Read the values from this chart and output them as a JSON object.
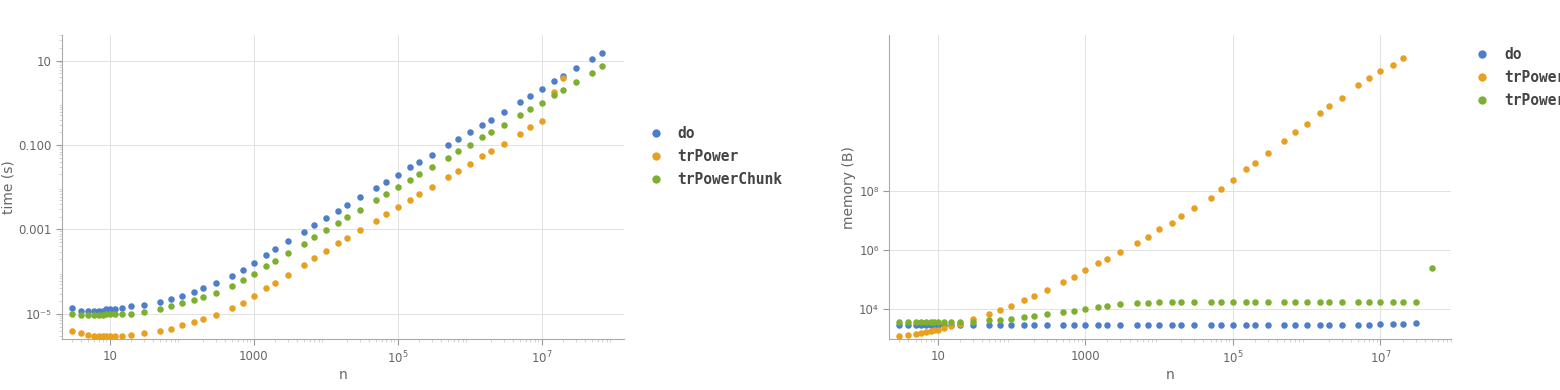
{
  "time_ylabel": "time (s)",
  "mem_ylabel": "memory (B)",
  "xlabel": "n",
  "colors": {
    "do": "#4f7ec9",
    "trPower": "#e8a020",
    "trPowerChunk": "#7db030"
  },
  "legend_labels": [
    "do",
    "trPower",
    "trPowerChunk"
  ],
  "dot_size": 22,
  "time": {
    "do_x": [
      3,
      4,
      5,
      6,
      7,
      8,
      9,
      10,
      12,
      15,
      20,
      30,
      50,
      70,
      100,
      150,
      200,
      300,
      500,
      700,
      1000,
      1500,
      2000,
      3000,
      5000,
      7000,
      10000,
      15000,
      20000,
      30000,
      50000,
      70000,
      100000,
      150000,
      200000,
      300000,
      500000,
      700000,
      1000000,
      1500000,
      2000000,
      3000000,
      5000000,
      7000000,
      10000000,
      15000000,
      20000000,
      30000000,
      50000000,
      70000000
    ],
    "do_y": [
      1.4e-05,
      1.2e-05,
      1.2e-05,
      1.2e-05,
      1.2e-05,
      1.2e-05,
      1.3e-05,
      1.3e-05,
      1.3e-05,
      1.4e-05,
      1.5e-05,
      1.6e-05,
      1.9e-05,
      2.2e-05,
      2.7e-05,
      3.3e-05,
      4e-05,
      5.5e-05,
      8e-05,
      0.00011,
      0.00016,
      0.00025,
      0.00034,
      0.00052,
      0.00087,
      0.00125,
      0.00185,
      0.0028,
      0.0038,
      0.0058,
      0.0095,
      0.0135,
      0.0195,
      0.0295,
      0.0395,
      0.059,
      0.098,
      0.14,
      0.2,
      0.3,
      0.4,
      0.61,
      1.02,
      1.45,
      2.1,
      3.2,
      4.3,
      6.5,
      10.7,
      15
    ],
    "trPower_x": [
      3,
      4,
      5,
      6,
      7,
      8,
      9,
      10,
      12,
      15,
      20,
      30,
      50,
      70,
      100,
      150,
      200,
      300,
      500,
      700,
      1000,
      1500,
      2000,
      3000,
      5000,
      7000,
      10000,
      15000,
      20000,
      30000,
      50000,
      70000,
      100000,
      150000,
      200000,
      300000,
      500000,
      700000,
      1000000,
      1500000,
      2000000,
      3000000,
      5000000,
      7000000,
      10000000,
      15000000,
      20000000
    ],
    "trPower_y": [
      4e-06,
      3.5e-06,
      3.2e-06,
      3e-06,
      3e-06,
      3e-06,
      3e-06,
      3e-06,
      3e-06,
      3e-06,
      3.2e-06,
      3.5e-06,
      4e-06,
      4.5e-06,
      5.5e-06,
      6.5e-06,
      7.5e-06,
      9.5e-06,
      1.35e-05,
      1.8e-05,
      2.7e-05,
      4e-05,
      5.5e-05,
      8.5e-05,
      0.00014,
      0.00021,
      0.00031,
      0.00047,
      0.00064,
      0.00097,
      0.00162,
      0.0023,
      0.00335,
      0.0051,
      0.0068,
      0.0102,
      0.017,
      0.0245,
      0.036,
      0.054,
      0.072,
      0.108,
      0.18,
      0.26,
      0.37,
      1.8,
      3.8
    ],
    "trPowerChunk_x": [
      3,
      4,
      5,
      6,
      7,
      8,
      9,
      10,
      12,
      15,
      20,
      30,
      50,
      70,
      100,
      150,
      200,
      300,
      500,
      700,
      1000,
      1500,
      2000,
      3000,
      5000,
      7000,
      10000,
      15000,
      20000,
      30000,
      50000,
      70000,
      100000,
      150000,
      200000,
      300000,
      500000,
      700000,
      1000000,
      1500000,
      2000000,
      3000000,
      5000000,
      7000000,
      10000000,
      15000000,
      20000000,
      30000000,
      50000000,
      70000000
    ],
    "trPowerChunk_y": [
      1e-05,
      9.5e-06,
      9.5e-06,
      9.5e-06,
      9.5e-06,
      9.5e-06,
      9.8e-06,
      9.8e-06,
      9.8e-06,
      9.8e-06,
      1e-05,
      1.1e-05,
      1.3e-05,
      1.5e-05,
      1.8e-05,
      2.1e-05,
      2.5e-05,
      3.2e-05,
      4.6e-05,
      6.2e-05,
      9e-05,
      0.000135,
      0.000182,
      0.000275,
      0.000455,
      0.000655,
      0.000955,
      0.00144,
      0.00194,
      0.00294,
      0.00488,
      0.0069,
      0.00995,
      0.015,
      0.0201,
      0.0302,
      0.0502,
      0.0705,
      0.101,
      0.152,
      0.202,
      0.303,
      0.503,
      0.706,
      1.01,
      1.52,
      2.02,
      3.03,
      5.05,
      7.6
    ]
  },
  "memory": {
    "do_x": [
      3,
      4,
      5,
      6,
      7,
      8,
      9,
      10,
      12,
      15,
      20,
      30,
      50,
      70,
      100,
      150,
      200,
      300,
      500,
      700,
      1000,
      1500,
      2000,
      3000,
      5000,
      7000,
      10000,
      15000,
      20000,
      30000,
      50000,
      70000,
      100000,
      150000,
      200000,
      300000,
      500000,
      700000,
      1000000,
      1500000,
      2000000,
      3000000,
      5000000,
      7000000,
      10000000,
      15000000,
      20000000,
      30000000
    ],
    "do_y": [
      2800,
      2800,
      2800,
      2800,
      2800,
      2800,
      2800,
      2800,
      2800,
      2800,
      2800,
      2800,
      2800,
      2800,
      2800,
      2800,
      2800,
      2800,
      2800,
      2800,
      2800,
      2800,
      2800,
      2800,
      2800,
      2800,
      2800,
      2800,
      2800,
      2800,
      2800,
      2800,
      2800,
      2800,
      2800,
      2800,
      2800,
      2800,
      2800,
      2800,
      2800,
      2800,
      2800,
      2800,
      2900,
      2900,
      2900,
      3200
    ],
    "trPower_x": [
      3,
      4,
      5,
      6,
      7,
      8,
      9,
      10,
      12,
      15,
      20,
      30,
      50,
      70,
      100,
      150,
      200,
      300,
      500,
      700,
      1000,
      1500,
      2000,
      3000,
      5000,
      7000,
      10000,
      15000,
      20000,
      30000,
      50000,
      70000,
      100000,
      150000,
      200000,
      300000,
      500000,
      700000,
      1000000,
      1500000,
      2000000,
      3000000,
      5000000,
      7000000,
      10000000,
      15000000,
      20000000
    ],
    "trPower_y": [
      1200,
      1300,
      1400,
      1500,
      1600,
      1700,
      1800,
      1900,
      2100,
      2500,
      3100,
      4400,
      6400,
      8800,
      12500.0,
      19500.0,
      26500.0,
      44000.0,
      79000.0,
      118000.0,
      197000.0,
      344000.0,
      490000.0,
      835000.0,
      1670000.0,
      2750000.0,
      4900000.0,
      8350000.0,
      13700000.0,
      26500000.0,
      59000000.0,
      118000000.0,
      245000000.0,
      540000000.0,
      880000000.0,
      1960000000.0,
      4900000000.0,
      9800000000.0,
      19600000000.0,
      44000000000.0,
      78000000000.0,
      147000000000.0,
      390000000000.0,
      690000000000.0,
      1180000000000.0,
      1960000000000.0,
      3430000000000.0
    ],
    "trPowerChunk_x": [
      3,
      4,
      5,
      6,
      7,
      8,
      9,
      10,
      12,
      15,
      20,
      30,
      50,
      70,
      100,
      150,
      200,
      300,
      500,
      700,
      1000,
      1500,
      2000,
      3000,
      5000,
      7000,
      10000,
      15000,
      20000,
      30000,
      50000,
      70000,
      100000,
      150000,
      200000,
      300000,
      500000,
      700000,
      1000000,
      1500000,
      2000000,
      3000000,
      5000000,
      7000000,
      10000000,
      15000000,
      20000000,
      30000000,
      50000000
    ],
    "trPowerChunk_y": [
      3400,
      3400,
      3400,
      3400,
      3400,
      3400,
      3400,
      3400,
      3400,
      3400,
      3500,
      3600,
      4000,
      4200,
      4500,
      5000,
      5500,
      6400,
      7500,
      8400,
      9500,
      11000.0,
      12000.0,
      13800.0,
      15200.0,
      15800.0,
      16200.0,
      16300.0,
      16300.0,
      16300.0,
      16300.0,
      16300.0,
      16300.0,
      16300.0,
      16300.0,
      16300.0,
      16300.0,
      16300.0,
      16300.0,
      16300.0,
      16300.0,
      16300.0,
      16300.0,
      16300.0,
      16300.0,
      16300.0,
      16300.0,
      16300.0,
      240000.0
    ]
  },
  "time_xlim": [
    2.2,
    140000000.0
  ],
  "time_ylim": [
    2.5e-06,
    40
  ],
  "mem_xlim": [
    2.2,
    90000000.0
  ],
  "mem_ylim": [
    900,
    20000000000000.0
  ],
  "time_yticks": [
    1e-05,
    0.001,
    0.1,
    10
  ],
  "time_yticklabels": [
    "10⁻⁵",
    "0.001",
    "0.100",
    "10"
  ],
  "mem_yticks": [
    10000.0,
    1000000.0,
    100000000.0
  ],
  "mem_yticklabels": [
    "10⁴",
    "10⁶",
    "10⁸"
  ]
}
